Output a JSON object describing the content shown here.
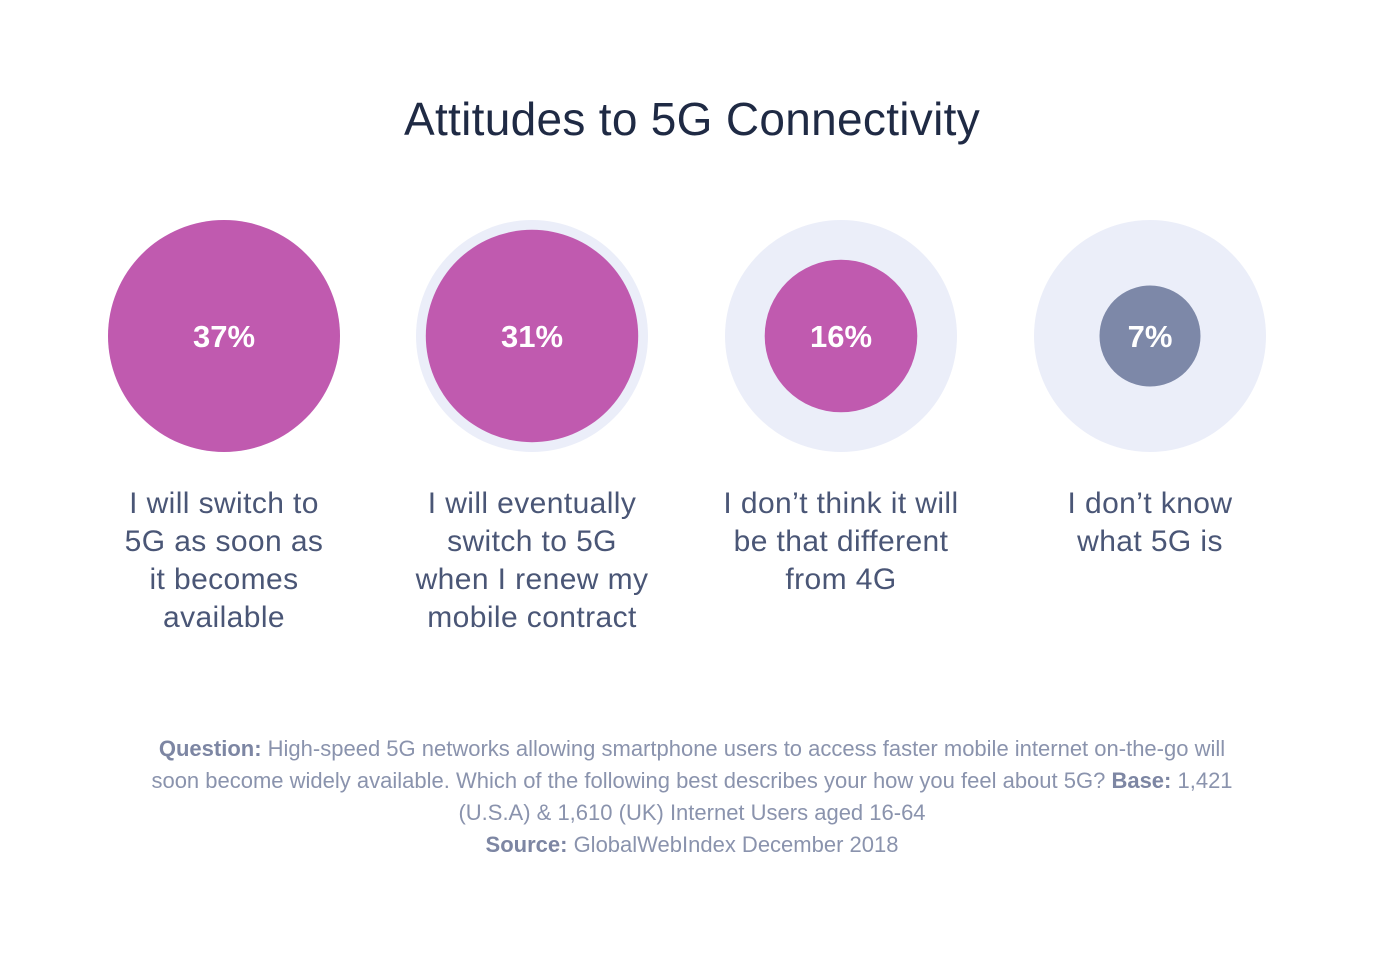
{
  "chart_data": {
    "type": "bubble",
    "title": "Attitudes to 5G Connectivity",
    "categories": [
      "I will switch to 5G as soon as it becomes available",
      "I will eventually switch to 5G when I renew my mobile contract",
      "I don’t think it will be that different from 4G",
      "I don’t know what 5G is"
    ],
    "values": [
      37,
      31,
      16,
      7
    ],
    "value_labels": [
      "37%",
      "31%",
      "16%",
      "7%"
    ],
    "unit": "%",
    "colors": {
      "bubble": "#c05aaf",
      "bubble_smallest": "#7d88a8",
      "background_circle": "#ebeef9"
    }
  },
  "category_lines": [
    [
      "I will switch to",
      "5G as soon as",
      "it becomes",
      "available"
    ],
    [
      "I will eventually",
      "switch to 5G",
      "when I renew my",
      "mobile contract"
    ],
    [
      "I don’t think it will",
      "be that different",
      "from 4G"
    ],
    [
      "I don’t know",
      "what 5G is"
    ]
  ],
  "footnote": {
    "question_label": "Question:",
    "question_text": " High-speed 5G networks allowing smartphone users to access faster mobile internet on-the-go will soon become widely available. Which of the following best describes your how you feel about 5G?",
    "base_label": "Base:",
    "base_text": " 1,421 (U.S.A) & 1,610 (UK) Internet Users aged 16-64",
    "source_label": "Source:",
    "source_text": " GlobalWebIndex December 2018"
  }
}
